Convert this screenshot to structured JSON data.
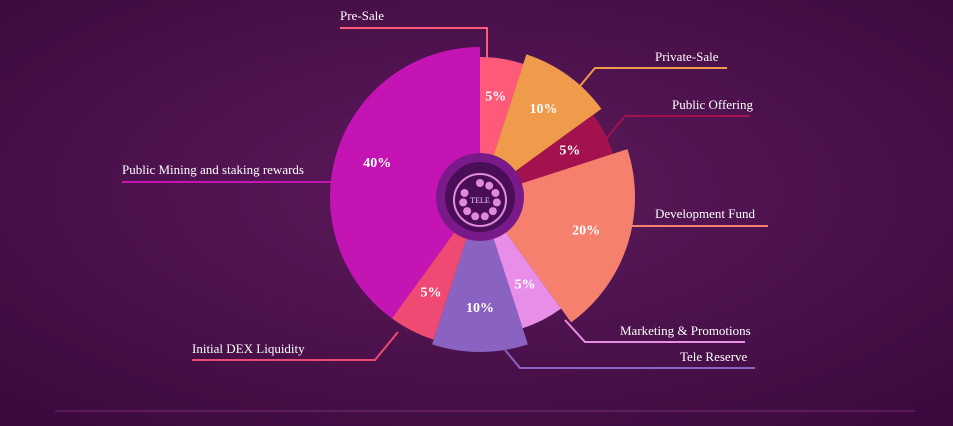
{
  "chart_data": {
    "type": "pie",
    "categories": [
      "Pre-Sale",
      "Private-Sale",
      "Public Offering",
      "Development Fund",
      "Marketing & Promotions",
      "Tele Reserve",
      "Initial DEX Liquidity",
      "Public Mining and staking rewards"
    ],
    "values": [
      5,
      10,
      5,
      20,
      5,
      10,
      5,
      40
    ],
    "value_labels": [
      "5%",
      "10%",
      "5%",
      "20%",
      "5%",
      "10%",
      "5%",
      "40%"
    ],
    "colors": [
      "#ff5a7a",
      "#f09a4c",
      "#a3124e",
      "#f6806e",
      "#e88ee8",
      "#8a62c2",
      "#ee4a74",
      "#c414b4"
    ],
    "center_label": "TELE"
  }
}
